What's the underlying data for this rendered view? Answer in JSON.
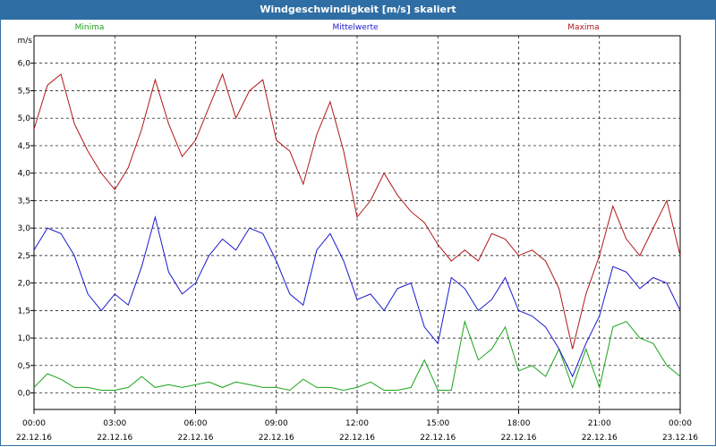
{
  "window": {
    "title": "Windgeschwindigkeit [m/s] skaliert"
  },
  "chart_data": {
    "type": "line",
    "title": "Windgeschwindigkeit [m/s] skaliert",
    "ylabel": "m/s",
    "xlabel": "",
    "ylim": [
      -0.3,
      6.5
    ],
    "y_ticks": [
      "0,0",
      "0,5",
      "1,0",
      "1,5",
      "2,0",
      "2,5",
      "3,0",
      "3,5",
      "4,0",
      "4,5",
      "5,0",
      "5,5",
      "6,0"
    ],
    "y_tick_values": [
      0,
      0.5,
      1,
      1.5,
      2,
      2.5,
      3,
      3.5,
      4,
      4.5,
      5,
      5.5,
      6
    ],
    "x_ticks": [
      {
        "time": "00:00",
        "date": "22.12.16"
      },
      {
        "time": "03:00",
        "date": "22.12.16"
      },
      {
        "time": "06:00",
        "date": "22.12.16"
      },
      {
        "time": "09:00",
        "date": "22.12.16"
      },
      {
        "time": "12:00",
        "date": "22.12.16"
      },
      {
        "time": "15:00",
        "date": "22.12.16"
      },
      {
        "time": "18:00",
        "date": "22.12.16"
      },
      {
        "time": "21:00",
        "date": "22.12.16"
      },
      {
        "time": "00:00",
        "date": "23.12.16"
      }
    ],
    "x_hours": [
      0,
      0.5,
      1,
      1.5,
      2,
      2.5,
      3,
      3.5,
      4,
      4.5,
      5,
      5.5,
      6,
      6.5,
      7,
      7.5,
      8,
      8.5,
      9,
      9.5,
      10,
      10.5,
      11,
      11.5,
      12,
      12.5,
      13,
      13.5,
      14,
      14.5,
      15,
      15.5,
      16,
      16.5,
      17,
      17.5,
      18,
      18.5,
      19,
      19.5,
      20,
      20.5,
      21,
      21.5,
      22,
      22.5,
      23,
      23.5,
      24
    ],
    "grid": true,
    "legend_placement": "top",
    "series": [
      {
        "name": "Minima",
        "color": "#1aa51a",
        "values": [
          0.1,
          0.35,
          0.25,
          0.1,
          0.1,
          0.05,
          0.05,
          0.1,
          0.3,
          0.1,
          0.15,
          0.1,
          0.15,
          0.2,
          0.1,
          0.2,
          0.15,
          0.1,
          0.1,
          0.05,
          0.25,
          0.1,
          0.1,
          0.05,
          0.1,
          0.2,
          0.05,
          0.05,
          0.1,
          0.6,
          0.05,
          0.05,
          1.3,
          0.6,
          0.8,
          1.2,
          0.4,
          0.5,
          0.3,
          0.8,
          0.1,
          0.8,
          0.1,
          1.2,
          1.3,
          1.0,
          0.9,
          0.5,
          0.3
        ]
      },
      {
        "name": "Mittelwerte",
        "color": "#1a1acc",
        "values": [
          2.6,
          3.0,
          2.9,
          2.5,
          1.8,
          1.5,
          1.8,
          1.6,
          2.3,
          3.2,
          2.2,
          1.8,
          2.0,
          2.5,
          2.8,
          2.6,
          3.0,
          2.9,
          2.4,
          1.8,
          1.6,
          2.6,
          2.9,
          2.4,
          1.7,
          1.8,
          1.5,
          1.9,
          2.0,
          1.2,
          0.9,
          2.1,
          1.9,
          1.5,
          1.7,
          2.1,
          1.5,
          1.4,
          1.2,
          0.8,
          0.3,
          0.9,
          1.4,
          2.3,
          2.2,
          1.9,
          2.1,
          2.0,
          1.5
        ]
      },
      {
        "name": "Maxima",
        "color": "#b01818",
        "values": [
          4.8,
          5.6,
          5.8,
          4.9,
          4.4,
          4.0,
          3.7,
          4.1,
          4.8,
          5.7,
          4.9,
          4.3,
          4.6,
          5.2,
          5.8,
          5.0,
          5.5,
          5.7,
          4.6,
          4.4,
          3.8,
          4.7,
          5.3,
          4.4,
          3.2,
          3.5,
          4.0,
          3.6,
          3.3,
          3.1,
          2.7,
          2.4,
          2.6,
          2.4,
          2.9,
          2.8,
          2.5,
          2.6,
          2.4,
          1.9,
          0.8,
          1.8,
          2.5,
          3.4,
          2.8,
          2.5,
          3.0,
          3.5,
          2.5
        ]
      }
    ]
  }
}
